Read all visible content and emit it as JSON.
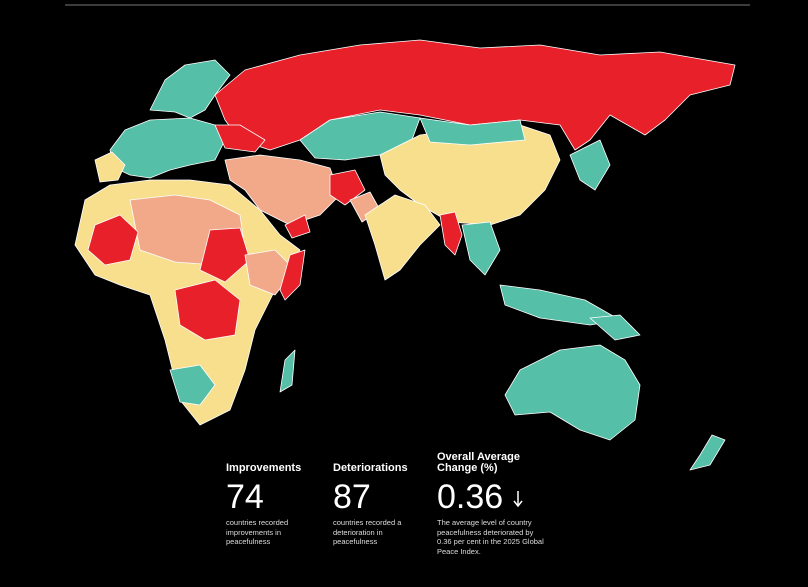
{
  "stats": [
    {
      "heading": "Improvements",
      "value": 74,
      "description": "countries recorded improvements in peacefulness"
    },
    {
      "heading": "Deteriorations",
      "value": 87,
      "description": "countries recorded a deterioration in peacefulness"
    },
    {
      "heading": "Overall Average Change (%)",
      "value": 0.36,
      "description": "The average level of country peacefulness deteriorated by 0.36 per cent in the 2025 Global Peace Index."
    }
  ]
}
